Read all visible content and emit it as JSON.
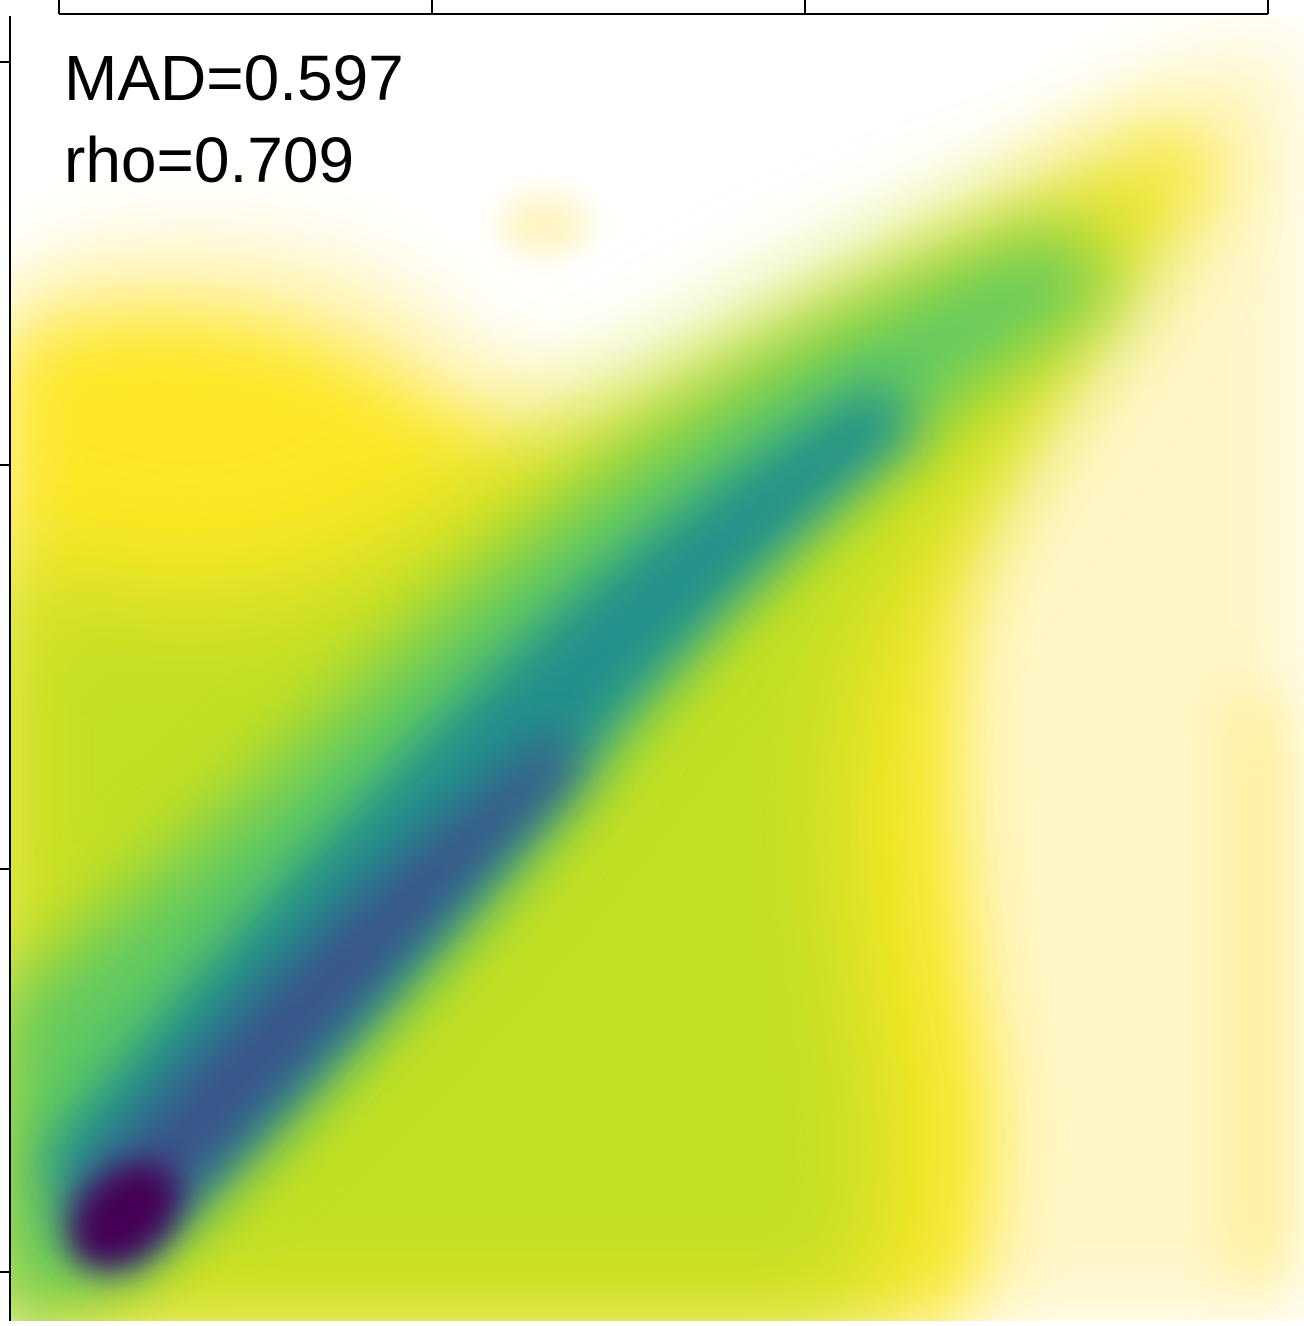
{
  "chart_data": {
    "type": "heatmap",
    "subtype": "2d-density",
    "title": "",
    "xlabel": "",
    "ylabel": "",
    "colormap": "viridis (reversed, low density shown white)",
    "colors": {
      "peak_density": "#440154",
      "mid_high": "#3b528b",
      "mid": "#21918c",
      "mid_low": "#5ec962",
      "low": "#fde725",
      "background": "#ffffff"
    },
    "annotations": [
      {
        "id": "mad",
        "text": "MAD=0.597"
      },
      {
        "id": "rho",
        "text": "rho=0.709"
      }
    ],
    "grid": false,
    "legend": "none",
    "density_description": "diagonal ridge from lower-left (peak) to upper-right"
  }
}
